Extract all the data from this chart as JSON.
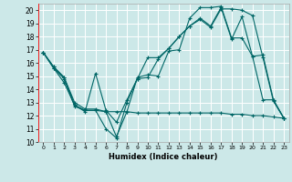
{
  "xlabel": "Humidex (Indice chaleur)",
  "bg_color": "#cce8e8",
  "line_color": "#006666",
  "grid_color": "#ffffff",
  "xlim": [
    -0.5,
    23.5
  ],
  "ylim": [
    10,
    20.5
  ],
  "xticks": [
    0,
    1,
    2,
    3,
    4,
    5,
    6,
    7,
    8,
    9,
    10,
    11,
    12,
    13,
    14,
    15,
    16,
    17,
    18,
    19,
    20,
    21,
    22,
    23
  ],
  "yticks": [
    10,
    11,
    12,
    13,
    14,
    15,
    16,
    17,
    18,
    19,
    20
  ],
  "line1_y": [
    16.8,
    15.6,
    14.8,
    12.7,
    12.4,
    12.4,
    11.0,
    10.3,
    13.0,
    14.8,
    14.9,
    16.3,
    17.1,
    18.0,
    18.8,
    19.3,
    18.7,
    20.1,
    20.1,
    20.0,
    19.6,
    16.4,
    13.1,
    11.8
  ],
  "line2_y": [
    16.8,
    15.7,
    14.9,
    13.0,
    12.5,
    12.5,
    12.3,
    10.4,
    12.3,
    14.9,
    15.1,
    15.0,
    16.9,
    17.0,
    19.4,
    20.2,
    20.2,
    20.3,
    17.9,
    17.9,
    16.5,
    16.6,
    13.2,
    11.8
  ],
  "line3_y": [
    16.8,
    15.6,
    14.5,
    12.8,
    12.3,
    15.2,
    12.4,
    11.5,
    13.2,
    14.8,
    16.4,
    16.4,
    17.1,
    18.0,
    18.8,
    19.4,
    18.8,
    20.2,
    17.8,
    19.5,
    16.5,
    13.2,
    13.2,
    11.8
  ],
  "line4_y": [
    16.8,
    15.7,
    14.9,
    12.8,
    12.4,
    12.4,
    12.3,
    12.3,
    12.3,
    12.2,
    12.2,
    12.2,
    12.2,
    12.2,
    12.2,
    12.2,
    12.2,
    12.2,
    12.1,
    12.1,
    12.0,
    12.0,
    11.9,
    11.8
  ]
}
